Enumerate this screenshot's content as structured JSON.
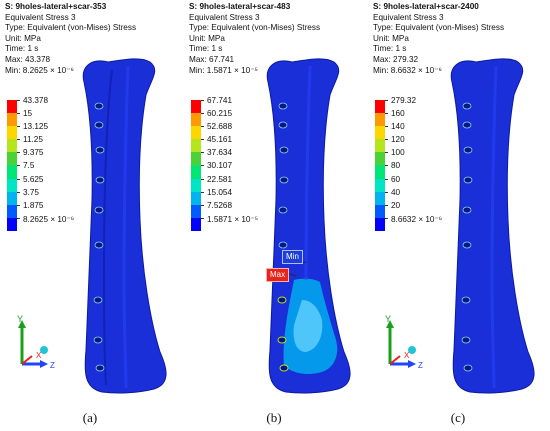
{
  "colors": {
    "legend": [
      "#ff0000",
      "#ff9900",
      "#ffd700",
      "#b5e61d",
      "#4cd137",
      "#00e676",
      "#00e5c3",
      "#00b4f0",
      "#005bff",
      "#0000ff"
    ],
    "bone": "#1a2fd8",
    "bone_shade": "#0d1aa0",
    "min_tag": "#1f3dd9",
    "max_tag": "#e8241a"
  },
  "panels": [
    {
      "title": "S: 9holes-lateral+scar-353",
      "result": "Equivalent Stress 3",
      "type": "Type: Equivalent (von-Mises) Stress",
      "unit": "Unit: MPa",
      "time": "Time: 1 s",
      "max": "Max: 43.378",
      "min": "Min: 8.2625 × 10⁻⁶",
      "legend": [
        "43.378",
        "15",
        "13.125",
        "11.25",
        "9.375",
        "7.5",
        "5.625",
        "3.75",
        "1.875",
        "8.2625 × 10⁻⁶"
      ],
      "caption": "(a)"
    },
    {
      "title": "S: 9holes-lateral+scar-483",
      "result": "Equivalent Stress 3",
      "type": "Type: Equivalent (von-Mises) Stress",
      "unit": "Unit: MPa",
      "time": "Time: 1 s",
      "max": "Max: 67.741",
      "min": "Min: 1.5871 × 10⁻⁵",
      "legend": [
        "67.741",
        "60.215",
        "52.688",
        "45.161",
        "37.634",
        "30.107",
        "22.581",
        "15.054",
        "7.5268",
        "1.5871 × 10⁻⁵"
      ],
      "caption": "(b)",
      "min_tag": "Min",
      "max_tag": "Max"
    },
    {
      "title": "S: 9holes-lateral+scar-2400",
      "result": "Equivalent Stress 3",
      "type": "Type: Equivalent (von-Mises) Stress",
      "unit": "Unit: MPa",
      "time": "Time: 1 s",
      "max": "Max: 279.32",
      "min": "Min: 8.6632 × 10⁻⁶",
      "legend": [
        "279.32",
        "160",
        "140",
        "120",
        "100",
        "80",
        "60",
        "40",
        "20",
        "8.6632 × 10⁻⁶"
      ],
      "caption": "(c)"
    }
  ],
  "axes": {
    "y": "Y",
    "x": "X",
    "z": "Z"
  }
}
